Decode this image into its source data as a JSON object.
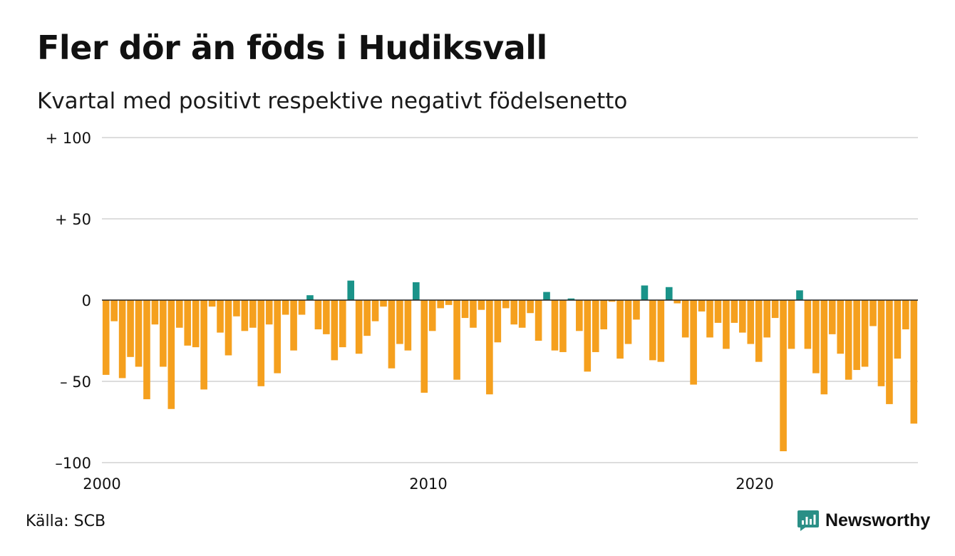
{
  "header": {
    "title": "Fler dör än föds i Hudiksvall",
    "subtitle": "Kvartal med positivt respektive negativt födelsenetto"
  },
  "footer": {
    "source": "Källa: SCB",
    "brand": "Newsworthy"
  },
  "colors": {
    "positive": "#1a9389",
    "negative": "#f5a01e",
    "grid": "#dddddd",
    "zero_line": "#222222",
    "brand": "#2a8f86"
  },
  "chart_data": {
    "type": "bar",
    "x_unit": "quarter",
    "first_quarter": "2000 Q1",
    "ylim": [
      -100,
      100
    ],
    "y_ticks": [
      {
        "value": 100,
        "label": "+ 100"
      },
      {
        "value": 50,
        "label": "+  50"
      },
      {
        "value": 0,
        "label": "0"
      },
      {
        "value": -50,
        "label": "– 50"
      },
      {
        "value": -100,
        "label": "–100"
      }
    ],
    "x_ticks": [
      {
        "quarter_index": 0,
        "label": "2000"
      },
      {
        "quarter_index": 40,
        "label": "2010"
      },
      {
        "quarter_index": 80,
        "label": "2020"
      }
    ],
    "grid": true,
    "values": [
      -46,
      -13,
      -48,
      -35,
      -41,
      -61,
      -15,
      -41,
      -67,
      -17,
      -28,
      -29,
      -55,
      -4,
      -20,
      -34,
      -10,
      -19,
      -17,
      -53,
      -15,
      -45,
      -9,
      -31,
      -9,
      3,
      -18,
      -21,
      -37,
      -29,
      12,
      -33,
      -22,
      -13,
      -4,
      -42,
      -27,
      -31,
      11,
      -57,
      -19,
      -5,
      -3,
      -49,
      -11,
      -17,
      -6,
      -58,
      -26,
      -5,
      -15,
      -17,
      -8,
      -25,
      5,
      -31,
      -32,
      1,
      -19,
      -44,
      -32,
      -18,
      -1,
      -36,
      -27,
      -12,
      9,
      -37,
      -38,
      8,
      -2,
      -23,
      -52,
      -7,
      -23,
      -14,
      -30,
      -14,
      -20,
      -27,
      -38,
      -23,
      -11,
      -93,
      -30,
      6,
      -30,
      -45,
      -58,
      -21,
      -33,
      -49,
      -43,
      -41,
      -16,
      -53,
      -64,
      -36,
      -18,
      -76
    ]
  }
}
